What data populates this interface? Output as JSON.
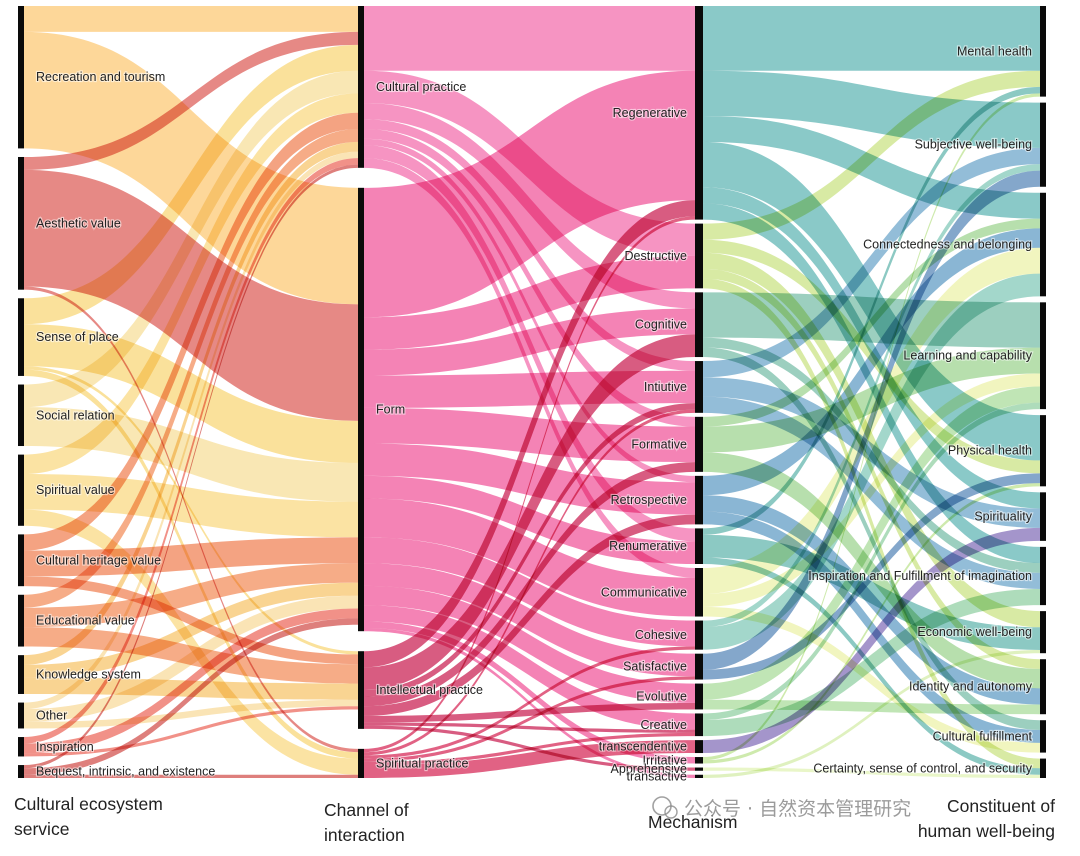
{
  "columns": [
    {
      "title_lines": [
        "Cultural ecosystem",
        "service"
      ],
      "color": "#f59a23",
      "nodes": [
        {
          "id": "rec",
          "label": "Recreation and tourism",
          "color": "#fbbf5b"
        },
        {
          "id": "aes",
          "label": "Aesthetic value",
          "color": "#d7403a"
        },
        {
          "id": "sop",
          "label": "Sense of place",
          "color": "#f7cf5e"
        },
        {
          "id": "soc",
          "label": "Social relation",
          "color": "#f6d886"
        },
        {
          "id": "spv",
          "label": "Spiritual value",
          "color": "#f8d26a"
        },
        {
          "id": "chv",
          "label": "Cultural heritage value",
          "color": "#ee6a36"
        },
        {
          "id": "edu",
          "label": "Educational value",
          "color": "#f0793d"
        },
        {
          "id": "kno",
          "label": "Knowledge system",
          "color": "#f6b94f"
        },
        {
          "id": "oth",
          "label": "Other",
          "color": "#f7d488"
        },
        {
          "id": "ins",
          "label": "Inspiration",
          "color": "#e94e3f"
        },
        {
          "id": "beq",
          "label": "Bequest, intrinsic, and existence",
          "color": "#c9302c"
        }
      ]
    },
    {
      "title_lines": [
        "Channel of",
        "interaction"
      ],
      "color": "#e83e8c",
      "nodes": [
        {
          "id": "cp",
          "label": "Cultural practice",
          "color": "#f266a8"
        },
        {
          "id": "form",
          "label": "Form",
          "color": "#f04f95"
        },
        {
          "id": "ip",
          "label": "Intellectual practice",
          "color": "#c8174c"
        },
        {
          "id": "sp",
          "label": "Spiritual practice",
          "color": "#d42050"
        }
      ]
    },
    {
      "title_lines": [
        "Mechanism"
      ],
      "color": "#e0245e",
      "nodes": [
        {
          "id": "regen",
          "label": "Regenerative",
          "color": "#2a9d9a"
        },
        {
          "id": "destr",
          "label": "Destructive",
          "color": "#b8d95a"
        },
        {
          "id": "cogn",
          "label": "Cognitive",
          "color": "#4aa88a"
        },
        {
          "id": "intui",
          "label": "Intiutive",
          "color": "#3b86b8"
        },
        {
          "id": "forma",
          "label": "Formative",
          "color": "#7cc46a"
        },
        {
          "id": "retro",
          "label": "Retrospective",
          "color": "#2a7ab0"
        },
        {
          "id": "renum",
          "label": "Renumerative",
          "color": "#2d9c92"
        },
        {
          "id": "commu",
          "label": "Communicative",
          "color": "#e5ed8a"
        },
        {
          "id": "cohes",
          "label": "Cohesive",
          "color": "#58b6a0"
        },
        {
          "id": "satis",
          "label": "Satisfactive",
          "color": "#1f5fa0"
        },
        {
          "id": "evolu",
          "label": "Evolutive",
          "color": "#8ccf78"
        },
        {
          "id": "creat",
          "label": "Creative",
          "color": "#6bbf83"
        },
        {
          "id": "trans",
          "label": "transcendentive",
          "color": "#5a3ea0"
        },
        {
          "id": "irrit",
          "label": "Irritative",
          "color": "#a6d96a"
        },
        {
          "id": "appre",
          "label": "Apprehensive",
          "color": "#d7ef9a"
        },
        {
          "id": "trsac",
          "label": "transactive",
          "color": "#c4e58a"
        }
      ]
    },
    {
      "title_lines": [
        "Constituent of",
        "human well-being"
      ],
      "color": "#111111",
      "nodes": [
        {
          "id": "mh",
          "label": "Mental health"
        },
        {
          "id": "swb",
          "label": "Subjective well-being"
        },
        {
          "id": "cb",
          "label": "Connectedness and belonging"
        },
        {
          "id": "lc",
          "label": "Learning and capability"
        },
        {
          "id": "ph",
          "label": "Physical health"
        },
        {
          "id": "spi",
          "label": "Spirituality"
        },
        {
          "id": "ifi",
          "label": "Inspiration and Fulfillment of imagination"
        },
        {
          "id": "ewb",
          "label": "Economic well-being"
        },
        {
          "id": "ia",
          "label": "Identity and autonomy"
        },
        {
          "id": "cf",
          "label": "Cultural fulfillment"
        },
        {
          "id": "cs",
          "label": "Certainty, sense of control, and security"
        }
      ]
    }
  ],
  "links": [
    {
      "source": "rec",
      "target": "cp",
      "value": 8
    },
    {
      "source": "rec",
      "target": "form",
      "value": 36
    },
    {
      "source": "aes",
      "target": "cp",
      "value": 4
    },
    {
      "source": "aes",
      "target": "form",
      "value": 36
    },
    {
      "source": "aes",
      "target": "sp",
      "value": 1
    },
    {
      "source": "sop",
      "target": "cp",
      "value": 8
    },
    {
      "source": "sop",
      "target": "form",
      "value": 13
    },
    {
      "source": "sop",
      "target": "ip",
      "value": 1
    },
    {
      "source": "sop",
      "target": "sp",
      "value": 2
    },
    {
      "source": "soc",
      "target": "cp",
      "value": 7
    },
    {
      "source": "soc",
      "target": "form",
      "value": 12
    },
    {
      "source": "spv",
      "target": "cp",
      "value": 6
    },
    {
      "source": "spv",
      "target": "form",
      "value": 11
    },
    {
      "source": "spv",
      "target": "sp",
      "value": 5
    },
    {
      "source": "chv",
      "target": "cp",
      "value": 5
    },
    {
      "source": "chv",
      "target": "form",
      "value": 8
    },
    {
      "source": "chv",
      "target": "ip",
      "value": 3
    },
    {
      "source": "edu",
      "target": "cp",
      "value": 4
    },
    {
      "source": "edu",
      "target": "form",
      "value": 6
    },
    {
      "source": "edu",
      "target": "ip",
      "value": 6
    },
    {
      "source": "kno",
      "target": "cp",
      "value": 3
    },
    {
      "source": "kno",
      "target": "form",
      "value": 4
    },
    {
      "source": "kno",
      "target": "ip",
      "value": 5
    },
    {
      "source": "oth",
      "target": "cp",
      "value": 2
    },
    {
      "source": "oth",
      "target": "form",
      "value": 4
    },
    {
      "source": "oth",
      "target": "ip",
      "value": 2
    },
    {
      "source": "ins",
      "target": "cp",
      "value": 2
    },
    {
      "source": "ins",
      "target": "form",
      "value": 3
    },
    {
      "source": "ins",
      "target": "ip",
      "value": 1
    },
    {
      "source": "beq",
      "target": "cp",
      "value": 1
    },
    {
      "source": "beq",
      "target": "form",
      "value": 2
    },
    {
      "source": "beq",
      "target": "sp",
      "value": 1
    },
    {
      "source": "cp",
      "target": "regen",
      "value": 20
    },
    {
      "source": "cp",
      "target": "destr",
      "value": 10
    },
    {
      "source": "cp",
      "target": "cogn",
      "value": 5
    },
    {
      "source": "cp",
      "target": "intui",
      "value": 3
    },
    {
      "source": "cp",
      "target": "forma",
      "value": 3
    },
    {
      "source": "cp",
      "target": "retro",
      "value": 2
    },
    {
      "source": "cp",
      "target": "renum",
      "value": 4
    },
    {
      "source": "cp",
      "target": "commu",
      "value": 3
    },
    {
      "source": "form",
      "target": "regen",
      "value": 40
    },
    {
      "source": "form",
      "target": "destr",
      "value": 10
    },
    {
      "source": "form",
      "target": "cogn",
      "value": 8
    },
    {
      "source": "form",
      "target": "intui",
      "value": 10
    },
    {
      "source": "form",
      "target": "forma",
      "value": 11
    },
    {
      "source": "form",
      "target": "retro",
      "value": 10
    },
    {
      "source": "form",
      "target": "renum",
      "value": 7
    },
    {
      "source": "form",
      "target": "commu",
      "value": 12
    },
    {
      "source": "form",
      "target": "cohes",
      "value": 8
    },
    {
      "source": "form",
      "target": "satis",
      "value": 7
    },
    {
      "source": "form",
      "target": "evolu",
      "value": 6
    },
    {
      "source": "form",
      "target": "creat",
      "value": 5
    },
    {
      "source": "form",
      "target": "irrit",
      "value": 2
    },
    {
      "source": "form",
      "target": "trsac",
      "value": 1
    },
    {
      "source": "ip",
      "target": "regen",
      "value": 5
    },
    {
      "source": "ip",
      "target": "cogn",
      "value": 7
    },
    {
      "source": "ip",
      "target": "intui",
      "value": 2
    },
    {
      "source": "ip",
      "target": "forma",
      "value": 3
    },
    {
      "source": "ip",
      "target": "retro",
      "value": 3
    },
    {
      "source": "ip",
      "target": "evolu",
      "value": 2
    },
    {
      "source": "ip",
      "target": "creat",
      "value": 1
    },
    {
      "source": "ip",
      "target": "appre",
      "value": 1
    },
    {
      "source": "sp",
      "target": "regen",
      "value": 1
    },
    {
      "source": "sp",
      "target": "intui",
      "value": 1
    },
    {
      "source": "sp",
      "target": "trans",
      "value": 4
    },
    {
      "source": "sp",
      "target": "cohes",
      "value": 1
    },
    {
      "source": "sp",
      "target": "satis",
      "value": 1
    },
    {
      "source": "sp",
      "target": "creat",
      "value": 1
    },
    {
      "source": "regen",
      "target": "mh",
      "value": 20
    },
    {
      "source": "regen",
      "target": "swb",
      "value": 14
    },
    {
      "source": "regen",
      "target": "ph",
      "value": 14
    },
    {
      "source": "regen",
      "target": "cb",
      "value": 8
    },
    {
      "source": "regen",
      "target": "spi",
      "value": 5
    },
    {
      "source": "regen",
      "target": "ifi",
      "value": 5
    },
    {
      "source": "destr",
      "target": "mh",
      "value": 5
    },
    {
      "source": "destr",
      "target": "ph",
      "value": 4
    },
    {
      "source": "destr",
      "target": "ewb",
      "value": 5
    },
    {
      "source": "destr",
      "target": "ia",
      "value": 3
    },
    {
      "source": "destr",
      "target": "cs",
      "value": 3
    },
    {
      "source": "cogn",
      "target": "lc",
      "value": 14
    },
    {
      "source": "cogn",
      "target": "ifi",
      "value": 3
    },
    {
      "source": "cogn",
      "target": "cf",
      "value": 3
    },
    {
      "source": "intui",
      "target": "spi",
      "value": 6
    },
    {
      "source": "intui",
      "target": "swb",
      "value": 5
    },
    {
      "source": "intui",
      "target": "ifi",
      "value": 5
    },
    {
      "source": "forma",
      "target": "lc",
      "value": 8
    },
    {
      "source": "forma",
      "target": "ia",
      "value": 6
    },
    {
      "source": "forma",
      "target": "cb",
      "value": 3
    },
    {
      "source": "retro",
      "target": "cb",
      "value": 6
    },
    {
      "source": "retro",
      "target": "ia",
      "value": 5
    },
    {
      "source": "retro",
      "target": "cf",
      "value": 4
    },
    {
      "source": "renum",
      "target": "ewb",
      "value": 7
    },
    {
      "source": "renum",
      "target": "mh",
      "value": 2
    },
    {
      "source": "renum",
      "target": "cs",
      "value": 2
    },
    {
      "source": "commu",
      "target": "cb",
      "value": 8
    },
    {
      "source": "commu",
      "target": "lc",
      "value": 4
    },
    {
      "source": "commu",
      "target": "cf",
      "value": 3
    },
    {
      "source": "cohes",
      "target": "cb",
      "value": 7
    },
    {
      "source": "cohes",
      "target": "swb",
      "value": 2
    },
    {
      "source": "satis",
      "target": "swb",
      "value": 5
    },
    {
      "source": "satis",
      "target": "ph",
      "value": 3
    },
    {
      "source": "evolu",
      "target": "lc",
      "value": 5
    },
    {
      "source": "evolu",
      "target": "ia",
      "value": 3
    },
    {
      "source": "creat",
      "target": "ifi",
      "value": 5
    },
    {
      "source": "creat",
      "target": "lc",
      "value": 2
    },
    {
      "source": "trans",
      "target": "spi",
      "value": 4
    },
    {
      "source": "irrit",
      "target": "mh",
      "value": 1
    },
    {
      "source": "irrit",
      "target": "ph",
      "value": 1
    },
    {
      "source": "appre",
      "target": "cs",
      "value": 1
    },
    {
      "source": "trsac",
      "target": "ewb",
      "value": 1
    }
  ],
  "watermark": "公众号 · 自然资本管理研究"
}
